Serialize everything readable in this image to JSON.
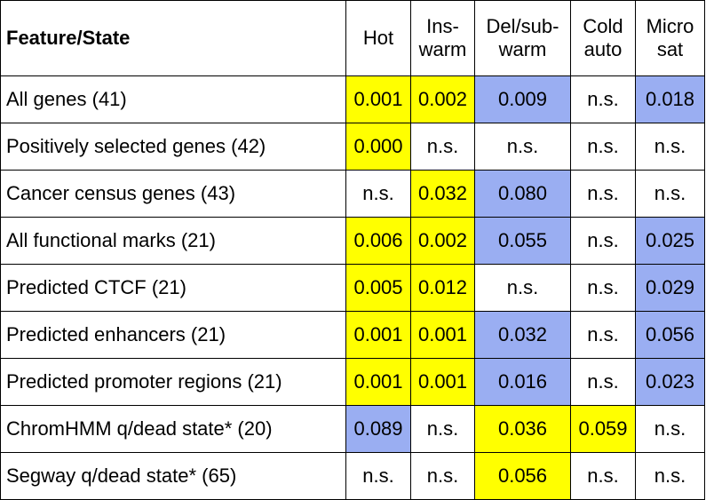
{
  "colors": {
    "sig_high": "#ffff00",
    "sig_low": "#9aaef2",
    "none": "#ffffff"
  },
  "table": {
    "headers": [
      {
        "lines": [
          "Feature/State"
        ]
      },
      {
        "lines": [
          "Hot"
        ]
      },
      {
        "lines": [
          "Ins-",
          "warm"
        ]
      },
      {
        "lines": [
          "Del/sub-",
          "warm"
        ]
      },
      {
        "lines": [
          "Cold",
          "auto"
        ]
      },
      {
        "lines": [
          "Micro",
          "sat"
        ]
      }
    ],
    "rows": [
      {
        "label": "All genes (41)",
        "cells": [
          {
            "v": "0.001",
            "c": "y"
          },
          {
            "v": "0.002",
            "c": "y"
          },
          {
            "v": "0.009",
            "c": "b"
          },
          {
            "v": "n.s.",
            "c": ""
          },
          {
            "v": "0.018",
            "c": "b"
          }
        ]
      },
      {
        "label": "Positively selected genes (42)",
        "cells": [
          {
            "v": "0.000",
            "c": "y"
          },
          {
            "v": "n.s.",
            "c": ""
          },
          {
            "v": "n.s.",
            "c": ""
          },
          {
            "v": "n.s.",
            "c": ""
          },
          {
            "v": "n.s.",
            "c": ""
          }
        ]
      },
      {
        "label": "Cancer census genes (43)",
        "cells": [
          {
            "v": "n.s.",
            "c": ""
          },
          {
            "v": "0.032",
            "c": "y"
          },
          {
            "v": "0.080",
            "c": "b"
          },
          {
            "v": "n.s.",
            "c": ""
          },
          {
            "v": "n.s.",
            "c": ""
          }
        ]
      },
      {
        "label": "All functional marks (21)",
        "cells": [
          {
            "v": "0.006",
            "c": "y"
          },
          {
            "v": "0.002",
            "c": "y"
          },
          {
            "v": "0.055",
            "c": "b"
          },
          {
            "v": "n.s.",
            "c": ""
          },
          {
            "v": "0.025",
            "c": "b"
          }
        ]
      },
      {
        "label": "Predicted CTCF (21)",
        "cells": [
          {
            "v": "0.005",
            "c": "y"
          },
          {
            "v": "0.012",
            "c": "y"
          },
          {
            "v": "n.s.",
            "c": ""
          },
          {
            "v": "n.s.",
            "c": ""
          },
          {
            "v": "0.029",
            "c": "b"
          }
        ]
      },
      {
        "label": "Predicted enhancers (21)",
        "cells": [
          {
            "v": "0.001",
            "c": "y"
          },
          {
            "v": "0.001",
            "c": "y"
          },
          {
            "v": "0.032",
            "c": "b"
          },
          {
            "v": "n.s.",
            "c": ""
          },
          {
            "v": "0.056",
            "c": "b"
          }
        ]
      },
      {
        "label": "Predicted promoter regions (21)",
        "cells": [
          {
            "v": "0.001",
            "c": "y"
          },
          {
            "v": "0.001",
            "c": "y"
          },
          {
            "v": "0.016",
            "c": "b"
          },
          {
            "v": "n.s.",
            "c": ""
          },
          {
            "v": "0.023",
            "c": "b"
          }
        ]
      },
      {
        "label": "ChromHMM q/dead state* (20)",
        "cells": [
          {
            "v": "0.089",
            "c": "b"
          },
          {
            "v": "n.s.",
            "c": ""
          },
          {
            "v": "0.036",
            "c": "y"
          },
          {
            "v": "0.059",
            "c": "y"
          },
          {
            "v": "n.s.",
            "c": ""
          }
        ]
      },
      {
        "label": "Segway q/dead state* (65)",
        "cells": [
          {
            "v": "n.s.",
            "c": ""
          },
          {
            "v": "n.s.",
            "c": ""
          },
          {
            "v": "0.056",
            "c": "y"
          },
          {
            "v": "n.s.",
            "c": ""
          },
          {
            "v": "n.s.",
            "c": ""
          }
        ]
      }
    ]
  }
}
